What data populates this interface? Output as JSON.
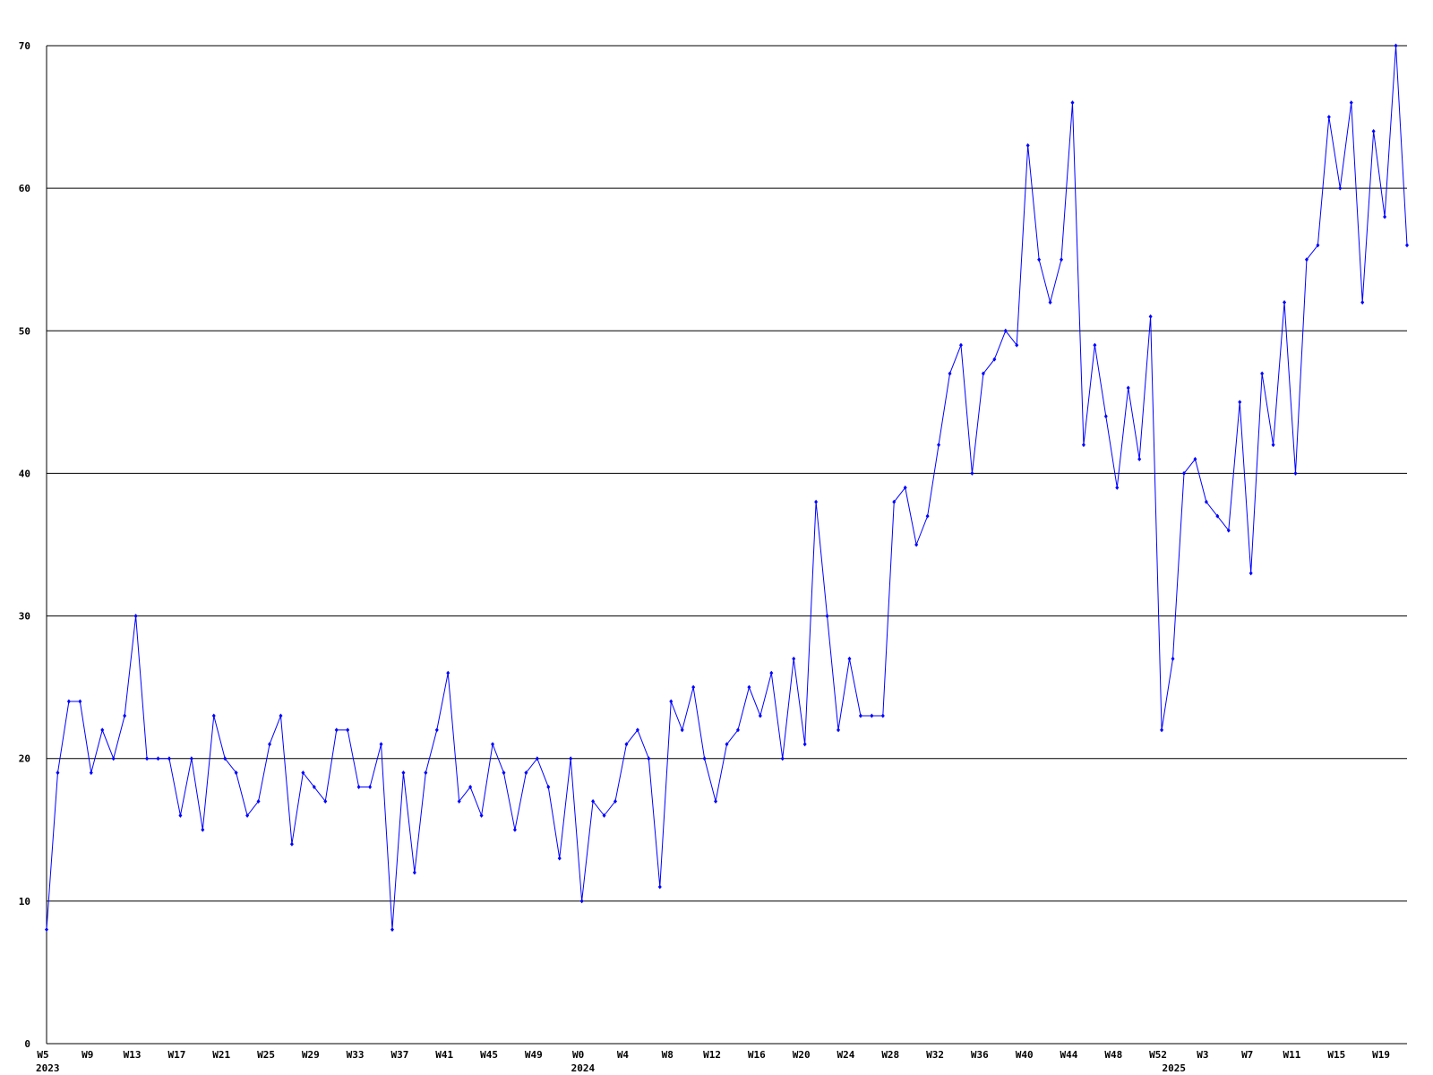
{
  "chart_data": {
    "type": "line",
    "categories": [
      "W5",
      null,
      null,
      null,
      "W9",
      null,
      null,
      null,
      "W13",
      null,
      null,
      null,
      "W17",
      null,
      null,
      null,
      "W21",
      null,
      null,
      null,
      "W25",
      null,
      null,
      null,
      "W29",
      null,
      null,
      null,
      "W33",
      null,
      null,
      null,
      "W37",
      null,
      null,
      null,
      "W41",
      null,
      null,
      null,
      "W45",
      null,
      null,
      null,
      "W49",
      null,
      null,
      null,
      "W0",
      null,
      null,
      null,
      "W4",
      null,
      null,
      null,
      "W8",
      null,
      null,
      null,
      "W12",
      null,
      null,
      null,
      "W16",
      null,
      null,
      null,
      "W20",
      null,
      null,
      null,
      "W24",
      null,
      null,
      null,
      "W28",
      null,
      null,
      null,
      "W32",
      null,
      null,
      null,
      "W36",
      null,
      null,
      null,
      "W40",
      null,
      null,
      null,
      "W44",
      null,
      null,
      null,
      "W48",
      null,
      null,
      null,
      "W52",
      null,
      null,
      null,
      "W3",
      null,
      null,
      null,
      "W7",
      null,
      null,
      null,
      "W11",
      null,
      null,
      null,
      "W15",
      null,
      null,
      null,
      "W19",
      null,
      null
    ],
    "category_years": [
      "2023",
      null,
      null,
      null,
      null,
      null,
      null,
      null,
      null,
      null,
      null,
      null,
      null,
      null,
      null,
      null,
      null,
      null,
      null,
      null,
      null,
      null,
      null,
      null,
      null,
      null,
      null,
      null,
      null,
      null,
      null,
      null,
      null,
      null,
      null,
      null,
      null,
      null,
      null,
      null,
      null,
      null,
      null,
      null,
      null,
      null,
      null,
      null,
      "2024",
      null,
      null,
      null,
      null,
      null,
      null,
      null,
      null,
      null,
      null,
      null,
      null,
      null,
      null,
      null,
      null,
      null,
      null,
      null,
      null,
      null,
      null,
      null,
      null,
      null,
      null,
      null,
      null,
      null,
      null,
      null,
      null,
      null,
      null,
      null,
      null,
      null,
      null,
      null,
      null,
      null,
      null,
      null,
      null,
      null,
      null,
      null,
      null,
      null,
      null,
      null,
      null,
      "2025",
      null,
      null,
      null,
      null,
      null,
      null,
      null,
      null,
      null,
      null,
      null,
      null,
      null,
      null,
      null,
      null,
      null,
      null,
      null,
      null,
      null
    ],
    "values": [
      8,
      19,
      24,
      24,
      19,
      22,
      20,
      23,
      30,
      20,
      20,
      20,
      16,
      20,
      15,
      23,
      20,
      19,
      16,
      17,
      21,
      23,
      14,
      19,
      18,
      17,
      22,
      22,
      18,
      18,
      21,
      8,
      19,
      12,
      19,
      22,
      26,
      17,
      18,
      16,
      21,
      19,
      15,
      19,
      20,
      18,
      13,
      20,
      10,
      17,
      16,
      17,
      21,
      22,
      20,
      11,
      24,
      22,
      25,
      20,
      17,
      21,
      22,
      25,
      23,
      26,
      20,
      27,
      21,
      38,
      30,
      22,
      27,
      23,
      23,
      23,
      38,
      39,
      35,
      37,
      42,
      47,
      49,
      40,
      47,
      48,
      50,
      49,
      63,
      55,
      52,
      55,
      66,
      42,
      49,
      44,
      39,
      46,
      41,
      51,
      22,
      27,
      40,
      41,
      38,
      37,
      36,
      45,
      33,
      47,
      42,
      52,
      40,
      55,
      56,
      65,
      60,
      66,
      52,
      64,
      58,
      70,
      56
    ],
    "color": "#0000ff",
    "ylim": [
      0,
      70
    ],
    "yticks": [
      0,
      10,
      20,
      30,
      40,
      50,
      60,
      70
    ],
    "grid": true
  }
}
